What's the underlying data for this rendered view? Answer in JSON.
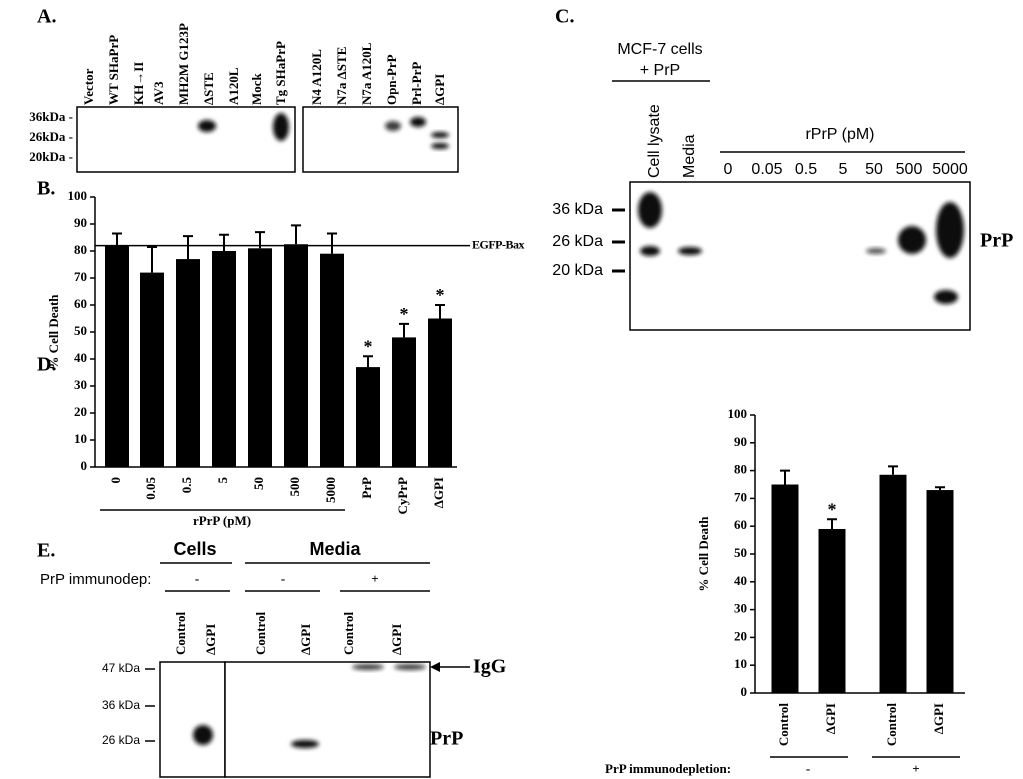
{
  "chart_data": [
    {
      "type": "bar",
      "panel_label": "B.",
      "ylabel": "% Cell Death",
      "categories": [
        "0",
        "0.05",
        "0.5",
        "5",
        "50",
        "500",
        "5000",
        "PrP",
        "CyPrP",
        "ΔGPI"
      ],
      "values": [
        82,
        72,
        77,
        80,
        81,
        82.5,
        79,
        37,
        48,
        55
      ],
      "errors": [
        4.5,
        9.5,
        8.5,
        6,
        6,
        7,
        7.5,
        4,
        5,
        5
      ],
      "significance": [
        null,
        null,
        null,
        null,
        null,
        null,
        null,
        "*",
        "*",
        "*"
      ],
      "color": "#000000",
      "ylim": [
        0,
        100
      ],
      "yticks": [
        0,
        10,
        20,
        30,
        40,
        50,
        60,
        70,
        80,
        90,
        100
      ],
      "reference_line": {
        "value": 82,
        "label": "EGFP-Bax"
      },
      "group_label": "rPrP (pM)"
    },
    {
      "type": "bar",
      "panel_label": "D.",
      "ylabel": "% Cell Death",
      "categories": [
        "Control",
        "ΔGPI",
        "Control",
        "ΔGPI"
      ],
      "values": [
        75,
        59,
        78.5,
        73
      ],
      "errors": [
        5,
        3.5,
        3,
        1
      ],
      "significance": [
        null,
        "*",
        null,
        null
      ],
      "color": "#000000",
      "ylim": [
        0,
        100
      ],
      "yticks": [
        0,
        10,
        20,
        30,
        40,
        50,
        60,
        70,
        80,
        90,
        100
      ],
      "group_title": "PrP immunodepletion:",
      "group_labels": [
        "-",
        "+"
      ]
    }
  ],
  "panel_a": {
    "label": "A.",
    "lanes_left": [
      "Vector",
      "WT SHaPrP",
      "KH→II",
      "AV3",
      "MH2M G123P",
      "ΔSTE",
      "A120L",
      "Mock",
      "Tg SHaPrP"
    ],
    "lanes_right": [
      "N4 A120L",
      "N7a ΔSTE",
      "N7a A120L",
      "Opn-PrP",
      "Prl-PrP",
      "ΔGPI"
    ],
    "markers": [
      "36kDa -",
      "26kDa -",
      "20kDa -"
    ]
  },
  "panel_c": {
    "label": "C.",
    "cells": "MCF-7 cells",
    "treatment": "+ PrP",
    "lanes_sample": [
      "Cell lysate",
      "Media"
    ],
    "rprp_title": "rPrP (pM)",
    "lanes_rprp": [
      "0",
      "0.05",
      "0.5",
      "5",
      "50",
      "500",
      "5000"
    ],
    "markers": [
      "36 kDa",
      "26 kDa",
      "20 kDa"
    ],
    "band_label": "PrP"
  },
  "panel_e": {
    "label": "E.",
    "group_cells": "Cells",
    "group_media": "Media",
    "immunodep_label": "PrP immunodep:",
    "immunodep_states": [
      "-",
      "-",
      "+"
    ],
    "lanes": [
      "Control",
      "ΔGPI",
      "Control",
      "ΔGPI",
      "Control",
      "ΔGPI"
    ],
    "markers": [
      "47 kDa",
      "36 kDa",
      "26 kDa"
    ],
    "igg_label": "IgG",
    "band_label": "PrP"
  }
}
